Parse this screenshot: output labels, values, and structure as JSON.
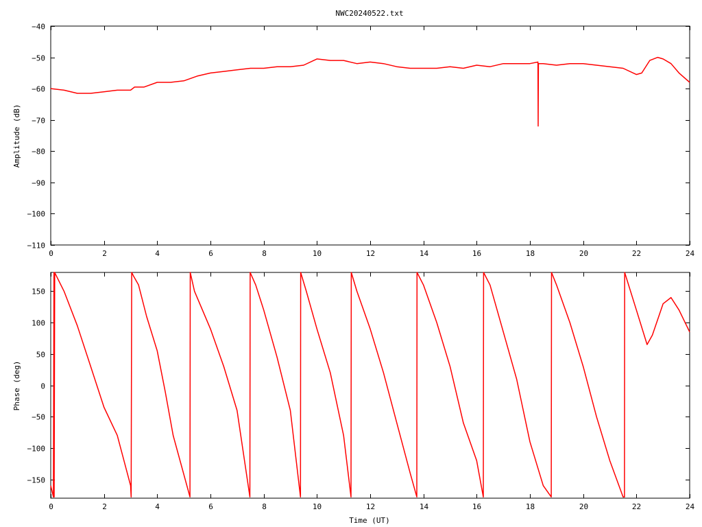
{
  "title": "NWC20240522.txt",
  "colors": {
    "series": "#ff0000",
    "axis": "#000000",
    "background": "#ffffff"
  },
  "chart_data": [
    {
      "type": "line",
      "ylabel": "Amplitude (dB)",
      "xlabel": "",
      "xlim": [
        0,
        24
      ],
      "ylim": [
        -110,
        -40
      ],
      "xticks": [
        0,
        2,
        4,
        6,
        8,
        10,
        12,
        14,
        16,
        18,
        20,
        22,
        24
      ],
      "yticks": [
        -110,
        -100,
        -90,
        -80,
        -70,
        -60,
        -50,
        -40
      ],
      "grid": false,
      "series": [
        {
          "x": [
            0,
            0.5,
            1,
            1.5,
            2,
            2.5,
            3,
            3.15,
            3.5,
            4,
            4.5,
            5,
            5.5,
            6,
            6.5,
            7,
            7.5,
            8,
            8.5,
            9,
            9.5,
            10,
            10.5,
            11,
            11.5,
            12,
            12.5,
            13,
            13.5,
            14,
            14.5,
            15,
            15.5,
            16,
            16.5,
            17,
            17.5,
            18,
            18.3,
            18.31,
            18.32,
            18.5,
            19,
            19.5,
            20,
            20.5,
            21,
            21.5,
            22,
            22.2,
            22.5,
            22.8,
            23,
            23.3,
            23.6,
            24
          ],
          "y": [
            -60,
            -60.5,
            -61.5,
            -61.5,
            -61,
            -60.5,
            -60.5,
            -59.5,
            -59.5,
            -58,
            -58,
            -57.5,
            -56,
            -55,
            -54.5,
            -54,
            -53.5,
            -53.5,
            -53,
            -53,
            -52.5,
            -50.5,
            -51,
            -51,
            -52,
            -51.5,
            -52,
            -53,
            -53.5,
            -53.5,
            -53.5,
            -53,
            -53.5,
            -52.5,
            -53,
            -52,
            -52,
            -52,
            -51.5,
            -72,
            -52,
            -52,
            -52.5,
            -52,
            -52,
            -52.5,
            -53,
            -53.5,
            -55.5,
            -55,
            -51,
            -50,
            -50.5,
            -52,
            -55,
            -58
          ]
        }
      ]
    },
    {
      "type": "line",
      "ylabel": "Phase (deg)",
      "xlabel": "Time (UT)",
      "xlim": [
        0,
        24
      ],
      "ylim": [
        -180,
        180
      ],
      "xticks": [
        0,
        2,
        4,
        6,
        8,
        10,
        12,
        14,
        16,
        18,
        20,
        22,
        24
      ],
      "yticks": [
        -150,
        -100,
        -50,
        0,
        50,
        100,
        150
      ],
      "grid": false,
      "series": [
        {
          "x": [
            0,
            0.1,
            0.12,
            0.13,
            0.15,
            0.17,
            0.5,
            1,
            1.5,
            2,
            2.5,
            3,
            3.02,
            3.04,
            3.1,
            3.3,
            3.6,
            4,
            4.3,
            4.6,
            5.23,
            5.24,
            5.4,
            6,
            6.5,
            7,
            7.48,
            7.49,
            7.7,
            8,
            8.5,
            9,
            9.38,
            9.39,
            9.6,
            10,
            10.5,
            11,
            11.28,
            11.29,
            11.5,
            12,
            12.5,
            13,
            13.5,
            13.75,
            13.76,
            14,
            14.5,
            15,
            15.5,
            16,
            16.25,
            16.26,
            16.5,
            17,
            17.5,
            18,
            18.5,
            18.8,
            18.81,
            19,
            19.5,
            20,
            20.5,
            21,
            21.5,
            21.55,
            21.56,
            22,
            22.4,
            22.6,
            23,
            23.3,
            23.6,
            24
          ],
          "y": [
            -160,
            -178,
            180,
            -178,
            180,
            178,
            150,
            95,
            30,
            -35,
            -80,
            -160,
            -178,
            180,
            175,
            160,
            110,
            55,
            -10,
            -80,
            -178,
            180,
            150,
            90,
            30,
            -40,
            -178,
            180,
            160,
            120,
            45,
            -40,
            -178,
            180,
            150,
            90,
            20,
            -80,
            -178,
            180,
            150,
            90,
            20,
            -60,
            -140,
            -178,
            180,
            160,
            100,
            30,
            -60,
            -120,
            -178,
            180,
            160,
            85,
            10,
            -90,
            -160,
            -178,
            180,
            160,
            100,
            30,
            -50,
            -120,
            -178,
            -178,
            180,
            120,
            65,
            80,
            130,
            140,
            120,
            85
          ]
        }
      ]
    }
  ]
}
